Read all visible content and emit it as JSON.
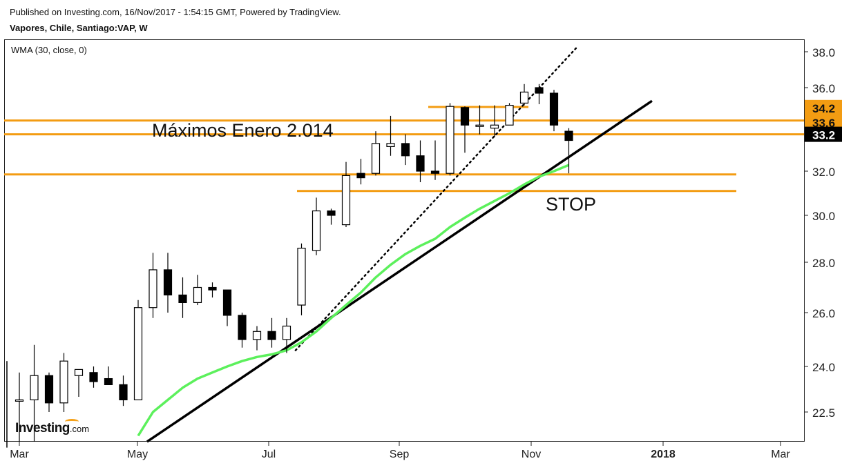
{
  "header": {
    "published": "Published on Investing.com, 16/Nov/2017 - 1:54:15 GMT, Powered by TradingView.",
    "symbol": "Vapores, Chile, Santiago:VAP, W"
  },
  "logo": {
    "brand": "Investing",
    "domain": ".com"
  },
  "chart_data": {
    "type": "candlestick",
    "indicator_label": "WMA (30, close, 0)",
    "x_tick_labels": [
      "Mar",
      "May",
      "Jul",
      "Sep",
      "Nov",
      "2018",
      "Mar"
    ],
    "y_tick_labels": [
      "22.5",
      "24.0",
      "26.0",
      "28.0",
      "30.0",
      "32.0",
      "34.0",
      "36.0",
      "38.0"
    ],
    "price_labels": [
      {
        "label": "34.2",
        "value": 34.2,
        "style": "orange"
      },
      {
        "label": "33.6",
        "value": 33.6,
        "style": "orange"
      },
      {
        "label": "33.2",
        "value": 33.2,
        "style": "black"
      }
    ],
    "annotations": [
      {
        "text": "Máximos Enero 2.014",
        "value": 33.45
      },
      {
        "text": "STOP",
        "value": 30.3
      }
    ],
    "horizontal_levels": [
      33.65,
      33.2,
      31.85,
      31.1
    ],
    "candles": [
      {
        "o": 22.9,
        "h": 23.8,
        "l": 22.0,
        "c": 22.9
      },
      {
        "o": 22.9,
        "h": 24.8,
        "l": 22.0,
        "c": 23.7
      },
      {
        "o": 23.7,
        "h": 23.8,
        "l": 22.5,
        "c": 22.8
      },
      {
        "o": 22.8,
        "h": 24.5,
        "l": 22.5,
        "c": 24.2
      },
      {
        "o": 23.7,
        "h": 23.9,
        "l": 23.0,
        "c": 23.9
      },
      {
        "o": 23.8,
        "h": 24.0,
        "l": 23.3,
        "c": 23.5
      },
      {
        "o": 23.6,
        "h": 24.0,
        "l": 23.4,
        "c": 23.4
      },
      {
        "o": 23.4,
        "h": 23.7,
        "l": 22.7,
        "c": 22.9
      },
      {
        "o": 22.9,
        "h": 26.5,
        "l": 22.9,
        "c": 26.2
      },
      {
        "o": 26.2,
        "h": 28.4,
        "l": 25.8,
        "c": 27.7
      },
      {
        "o": 27.7,
        "h": 28.4,
        "l": 26.0,
        "c": 26.7
      },
      {
        "o": 26.7,
        "h": 27.4,
        "l": 25.8,
        "c": 26.4
      },
      {
        "o": 26.4,
        "h": 27.5,
        "l": 26.3,
        "c": 27.0
      },
      {
        "o": 27.0,
        "h": 27.2,
        "l": 26.6,
        "c": 26.9
      },
      {
        "o": 26.9,
        "h": 26.9,
        "l": 25.5,
        "c": 25.9
      },
      {
        "o": 25.9,
        "h": 26.0,
        "l": 24.7,
        "c": 25.0
      },
      {
        "o": 25.0,
        "h": 25.5,
        "l": 24.6,
        "c": 25.3
      },
      {
        "o": 25.3,
        "h": 25.8,
        "l": 24.7,
        "c": 25.0
      },
      {
        "o": 25.0,
        "h": 25.8,
        "l": 24.5,
        "c": 25.5
      },
      {
        "o": 26.3,
        "h": 28.8,
        "l": 25.9,
        "c": 28.6
      },
      {
        "o": 28.5,
        "h": 30.8,
        "l": 28.3,
        "c": 30.2
      },
      {
        "o": 30.2,
        "h": 30.3,
        "l": 29.6,
        "c": 30.0
      },
      {
        "o": 29.6,
        "h": 32.3,
        "l": 29.5,
        "c": 31.8
      },
      {
        "o": 31.9,
        "h": 32.4,
        "l": 31.4,
        "c": 31.7
      },
      {
        "o": 31.9,
        "h": 33.3,
        "l": 31.8,
        "c": 32.9
      },
      {
        "o": 32.8,
        "h": 33.8,
        "l": 32.5,
        "c": 32.9
      },
      {
        "o": 32.9,
        "h": 33.2,
        "l": 32.2,
        "c": 32.5
      },
      {
        "o": 32.5,
        "h": 33.0,
        "l": 31.5,
        "c": 32.0
      },
      {
        "o": 32.0,
        "h": 33.0,
        "l": 31.6,
        "c": 31.9
      },
      {
        "o": 31.9,
        "h": 34.6,
        "l": 31.8,
        "c": 34.3
      },
      {
        "o": 34.2,
        "h": 34.3,
        "l": 32.6,
        "c": 33.5
      },
      {
        "o": 33.5,
        "h": 34.4,
        "l": 33.2,
        "c": 33.5
      },
      {
        "o": 33.4,
        "h": 34.4,
        "l": 33.1,
        "c": 33.5
      },
      {
        "o": 33.5,
        "h": 34.6,
        "l": 33.5,
        "c": 34.4
      },
      {
        "o": 34.6,
        "h": 36.2,
        "l": 34.4,
        "c": 35.6
      },
      {
        "o": 36.0,
        "h": 36.2,
        "l": 34.5,
        "c": 35.5
      },
      {
        "o": 35.5,
        "h": 35.8,
        "l": 33.3,
        "c": 33.5
      },
      {
        "o": 33.3,
        "h": 33.4,
        "l": 31.9,
        "c": 33.0
      }
    ],
    "wma": [
      null,
      null,
      null,
      null,
      null,
      null,
      null,
      null,
      22.1,
      22.5,
      22.9,
      23.3,
      23.6,
      23.8,
      24.0,
      24.2,
      24.35,
      24.45,
      24.6,
      24.9,
      25.3,
      25.8,
      26.3,
      26.8,
      27.4,
      27.9,
      28.35,
      28.7,
      29.0,
      29.5,
      29.9,
      30.3,
      30.65,
      31.0,
      31.4,
      31.75,
      32.0,
      32.2
    ],
    "trendlines": [
      {
        "style": "solid",
        "x0": 8.6,
        "y0": 22.0,
        "x1": 42.6,
        "y1": 34.8
      },
      {
        "style": "dotted",
        "x0": 18.6,
        "y0": 24.6,
        "x1": 37.6,
        "y1": 38.3
      }
    ]
  }
}
